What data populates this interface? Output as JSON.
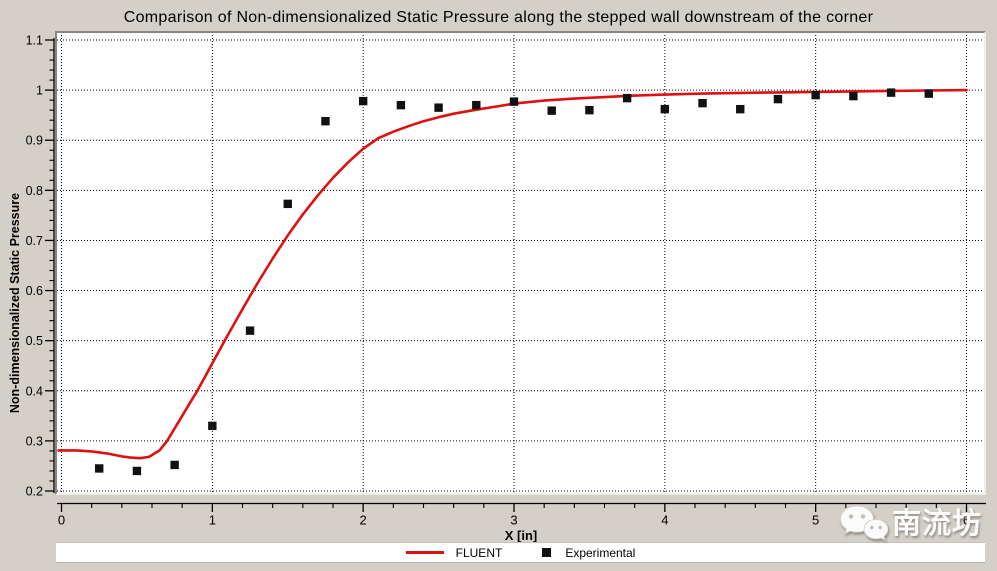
{
  "window": {
    "background": "#d4d0c8",
    "plot_background": "#ffffff"
  },
  "chart_data": {
    "type": "line",
    "title": "Comparison of Non-dimensionalized Static Pressure along the stepped wall downstream of the corner",
    "xlabel": "X [in]",
    "ylabel": "Non-dimensionalized Static Pressure",
    "xlim": [
      0,
      6
    ],
    "ylim": [
      0.2,
      1.1
    ],
    "x_tick_values": [
      0,
      1,
      2,
      3,
      4,
      5,
      6
    ],
    "x_tick_labels": [
      "0",
      "1",
      "2",
      "3",
      "4",
      "5",
      "6"
    ],
    "x_minor_tick_step": 0.2,
    "y_tick_values": [
      0.2,
      0.3,
      0.4,
      0.5,
      0.6,
      0.7,
      0.8,
      0.9,
      1.0,
      1.1
    ],
    "y_tick_labels": [
      "0.2",
      "0.3",
      "0.4",
      "0.5",
      "0.6",
      "0.7",
      "0.8",
      "0.9",
      "1",
      "1.1"
    ],
    "y_minor_tick_step": 0.02,
    "grid": {
      "style": "dotted",
      "color": "#000000",
      "major_only": true
    },
    "legend_position": "bottom",
    "series": [
      {
        "name": "FLUENT",
        "type": "line",
        "color": "#dd1111",
        "points": [
          [
            -0.02,
            0.281
          ],
          [
            0.1,
            0.281
          ],
          [
            0.2,
            0.279
          ],
          [
            0.3,
            0.275
          ],
          [
            0.4,
            0.269
          ],
          [
            0.45,
            0.267
          ],
          [
            0.52,
            0.2655
          ],
          [
            0.58,
            0.268
          ],
          [
            0.65,
            0.281
          ],
          [
            0.7,
            0.3
          ],
          [
            0.75,
            0.325
          ],
          [
            0.8,
            0.35
          ],
          [
            0.85,
            0.375
          ],
          [
            0.9,
            0.4
          ],
          [
            0.95,
            0.427
          ],
          [
            1.0,
            0.455
          ],
          [
            1.1,
            0.51
          ],
          [
            1.2,
            0.563
          ],
          [
            1.3,
            0.615
          ],
          [
            1.4,
            0.664
          ],
          [
            1.5,
            0.71
          ],
          [
            1.6,
            0.752
          ],
          [
            1.7,
            0.79
          ],
          [
            1.8,
            0.825
          ],
          [
            1.9,
            0.856
          ],
          [
            2.0,
            0.883
          ],
          [
            2.1,
            0.904
          ],
          [
            2.2,
            0.917
          ],
          [
            2.3,
            0.928
          ],
          [
            2.4,
            0.938
          ],
          [
            2.5,
            0.946
          ],
          [
            2.6,
            0.953
          ],
          [
            2.75,
            0.961
          ],
          [
            2.9,
            0.968
          ],
          [
            3.0,
            0.973
          ],
          [
            3.2,
            0.979
          ],
          [
            3.4,
            0.983
          ],
          [
            3.6,
            0.986
          ],
          [
            3.8,
            0.989
          ],
          [
            4.0,
            0.991
          ],
          [
            4.25,
            0.993
          ],
          [
            4.5,
            0.9945
          ],
          [
            4.75,
            0.9955
          ],
          [
            5.0,
            0.9965
          ],
          [
            5.25,
            0.9975
          ],
          [
            5.5,
            0.9985
          ],
          [
            5.75,
            0.9992
          ],
          [
            6.0,
            1.0
          ]
        ]
      },
      {
        "name": "Experimental",
        "type": "scatter",
        "marker": "square",
        "color": "#111111",
        "points": [
          [
            0.25,
            0.245
          ],
          [
            0.5,
            0.24
          ],
          [
            0.75,
            0.252
          ],
          [
            1.0,
            0.33
          ],
          [
            1.25,
            0.52
          ],
          [
            1.5,
            0.773
          ],
          [
            1.75,
            0.938
          ],
          [
            2.0,
            0.978
          ],
          [
            2.25,
            0.97
          ],
          [
            2.5,
            0.965
          ],
          [
            2.75,
            0.97
          ],
          [
            3.0,
            0.977
          ],
          [
            3.25,
            0.959
          ],
          [
            3.5,
            0.96
          ],
          [
            3.75,
            0.984
          ],
          [
            4.0,
            0.962
          ],
          [
            4.25,
            0.974
          ],
          [
            4.5,
            0.962
          ],
          [
            4.75,
            0.982
          ],
          [
            5.0,
            0.99
          ],
          [
            5.25,
            0.988
          ],
          [
            5.5,
            0.995
          ],
          [
            5.75,
            0.993
          ]
        ]
      }
    ]
  },
  "legend": {
    "items": [
      {
        "label": "FLUENT",
        "marker": "line",
        "color": "#dd1111"
      },
      {
        "label": "Experimental",
        "marker": "square",
        "color": "#111111"
      }
    ]
  },
  "watermark": {
    "text": "南流坊",
    "icon": "wechat"
  }
}
